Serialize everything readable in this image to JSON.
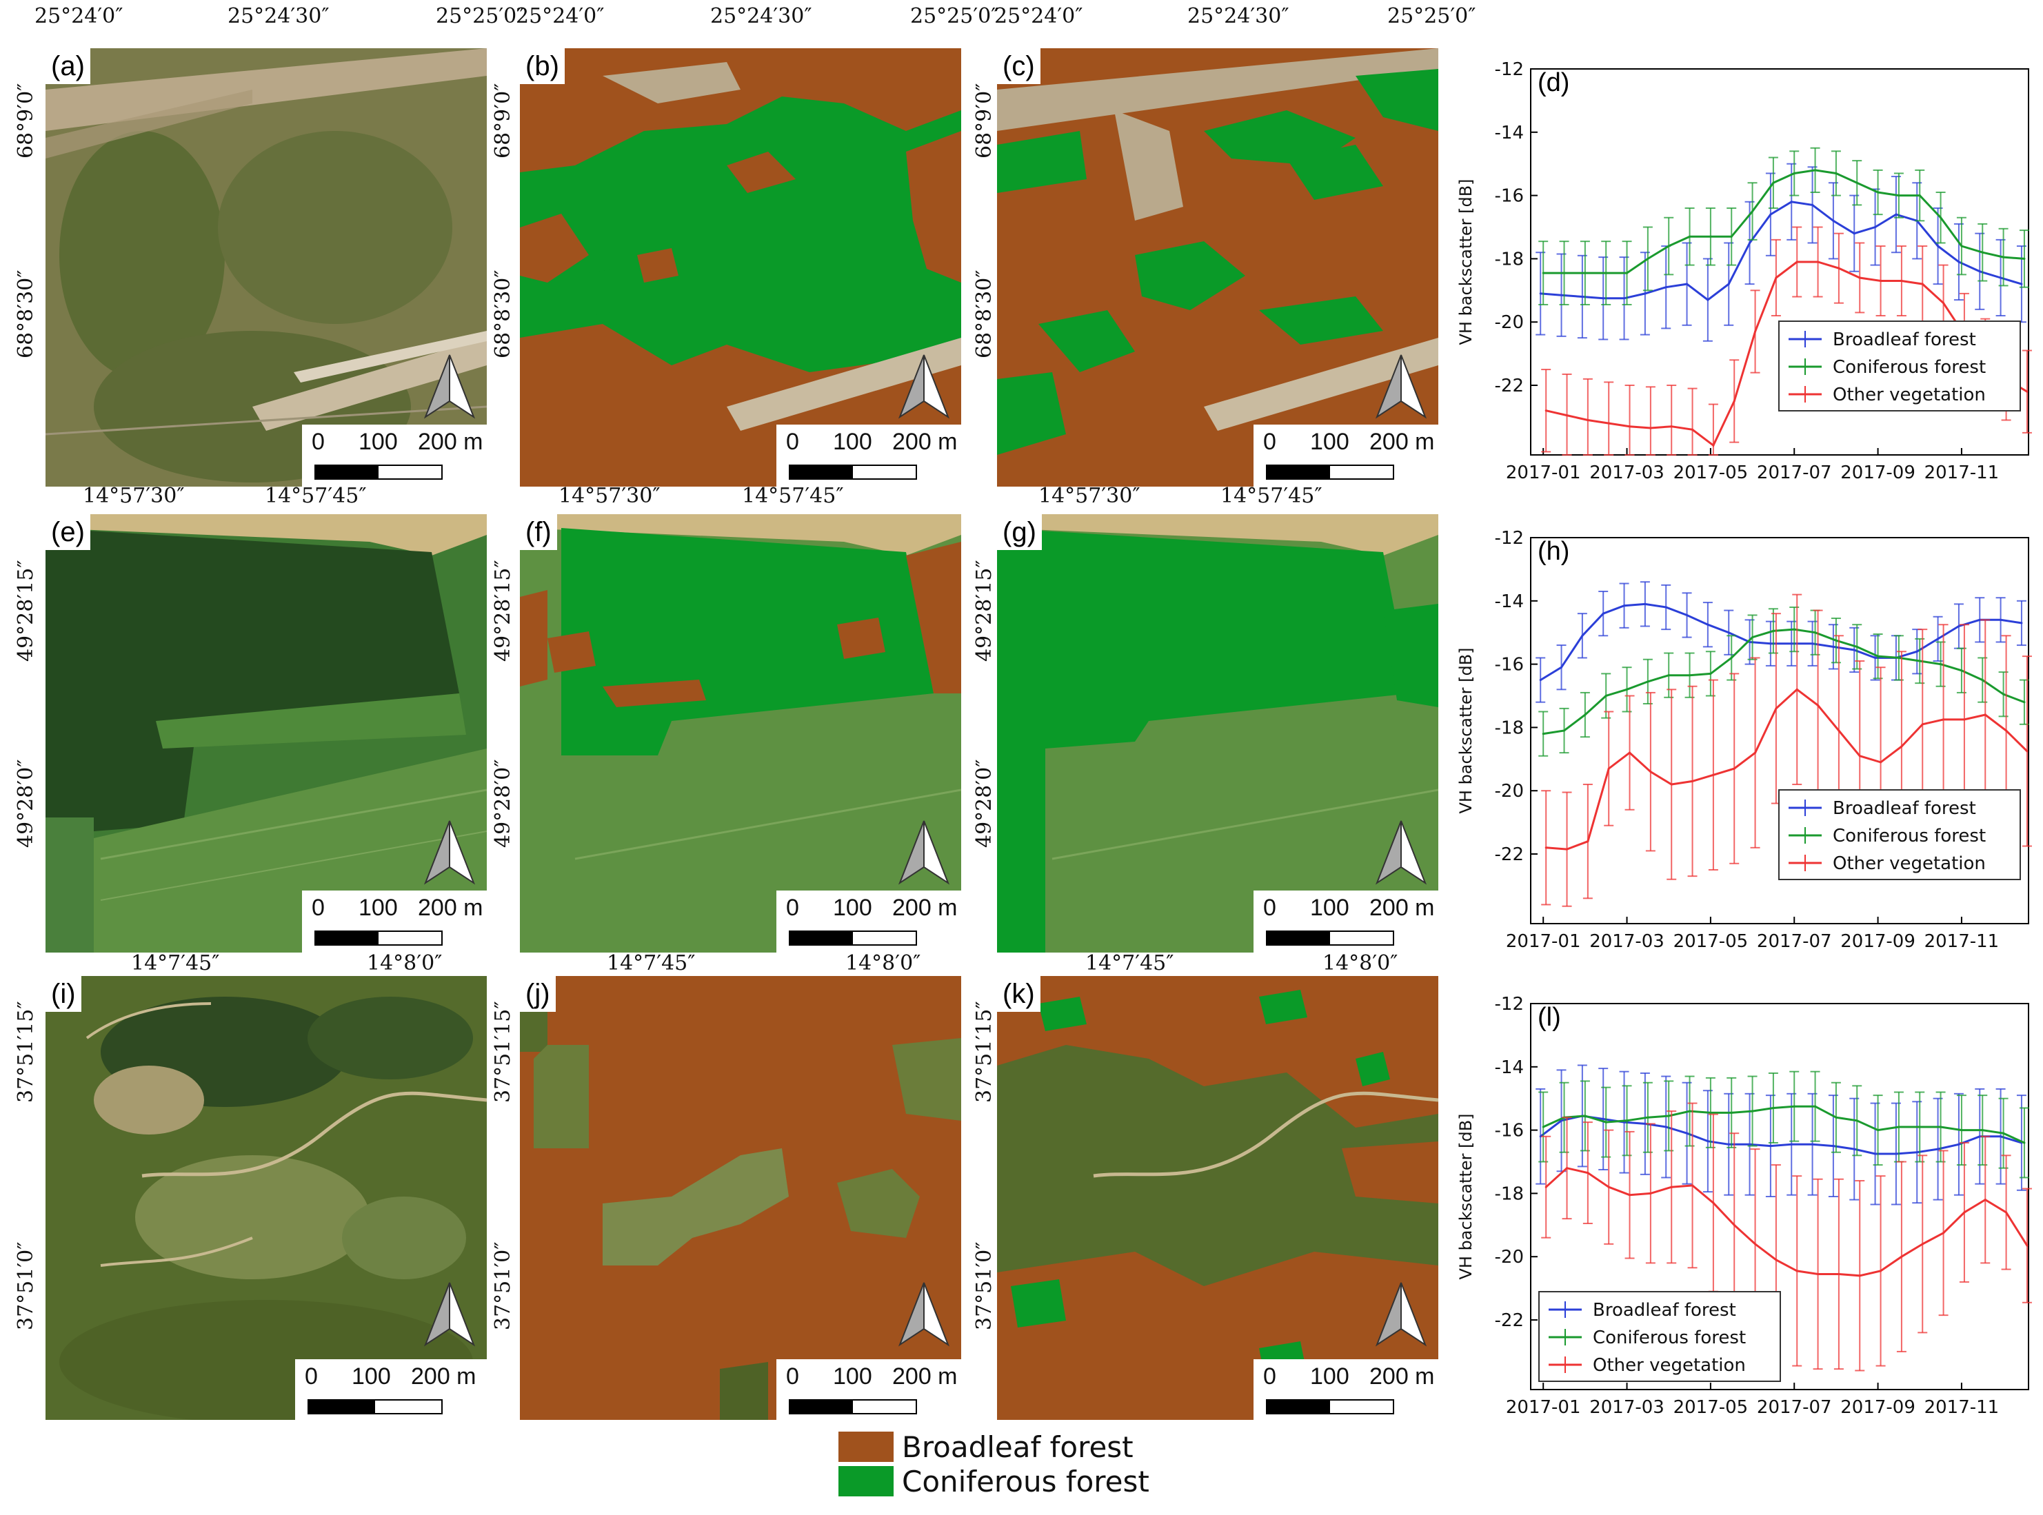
{
  "figure": {
    "legend": [
      {
        "label": "Broadleaf forest",
        "color": "#A0521D"
      },
      {
        "label": "Coniferous forest",
        "color": "#0A9A28"
      }
    ],
    "scale_labels": {
      "zero": "0",
      "mid": "100",
      "end": "200 m"
    }
  },
  "rows": [
    {
      "top_labels": [
        "25°24′0″",
        "25°24′30″",
        "25°25′0″"
      ],
      "side_labels": [
        "68°9′0″",
        "68°8′30″"
      ],
      "panels": [
        {
          "label": "(a)",
          "kind": "photo"
        },
        {
          "label": "(b)",
          "kind": "broadleaf-dominant-map"
        },
        {
          "label": "(c)",
          "kind": "mixed-map"
        }
      ],
      "chart_label": "(d)"
    },
    {
      "top_labels": [
        "14°57′30″",
        "14°57′45″"
      ],
      "side_labels": [
        "49°28′15″",
        "49°28′0″"
      ],
      "panels": [
        {
          "label": "(e)",
          "kind": "photo"
        },
        {
          "label": "(f)",
          "kind": "coniferous-map"
        },
        {
          "label": "(g)",
          "kind": "coniferous-map"
        }
      ],
      "chart_label": "(h)"
    },
    {
      "top_labels": [
        "14°7′45″",
        "14°8′0″"
      ],
      "side_labels": [
        "37°51′15″",
        "37°51′0″"
      ],
      "panels": [
        {
          "label": "(i)",
          "kind": "photo"
        },
        {
          "label": "(j)",
          "kind": "broadleaf-map"
        },
        {
          "label": "(k)",
          "kind": "broadleaf-map"
        }
      ],
      "chart_label": "(l)"
    }
  ],
  "chart_data": [
    {
      "type": "line",
      "label": "(d)",
      "ylabel": "VH backscatter [dB]",
      "xlabel": "",
      "ylim": [
        -24.2,
        -12
      ],
      "yticks": [
        -22,
        -20,
        -18,
        -16,
        -14,
        -12
      ],
      "x_tick_labels": [
        "2017-01",
        "2017-03",
        "2017-05",
        "2017-07",
        "2017-09",
        "2017-11"
      ],
      "x_tick_positions": [
        0,
        2,
        4,
        6,
        8,
        10
      ],
      "x_range": [
        -0.3,
        11.6
      ],
      "x": [
        0,
        0.5,
        1,
        1.5,
        2,
        2.5,
        3,
        3.5,
        4,
        4.5,
        5,
        5.5,
        6,
        6.5,
        7,
        7.5,
        8,
        8.5,
        9,
        9.5,
        10,
        10.5,
        11,
        11.5
      ],
      "legend_position": "bottom-right",
      "series": [
        {
          "name": "Broadleaf forest",
          "color": "#2B3FD8",
          "values": [
            -19.1,
            -19.15,
            -19.2,
            -19.25,
            -19.25,
            -19.1,
            -18.9,
            -18.8,
            -19.3,
            -18.8,
            -17.5,
            -16.6,
            -16.2,
            -16.3,
            -16.8,
            -17.2,
            -17.0,
            -16.6,
            -16.8,
            -17.6,
            -18.1,
            -18.4,
            -18.6,
            -18.8
          ],
          "errors": [
            1.3,
            1.3,
            1.3,
            1.3,
            1.3,
            1.3,
            1.3,
            1.3,
            1.3,
            1.3,
            1.3,
            1.3,
            1.2,
            1.2,
            1.2,
            1.2,
            1.2,
            1.2,
            1.2,
            1.2,
            1.2,
            1.2,
            1.2,
            1.2
          ]
        },
        {
          "name": "Coniferous forest",
          "color": "#1A9A2E",
          "values": [
            -18.45,
            -18.45,
            -18.45,
            -18.45,
            -18.45,
            -18.0,
            -17.6,
            -17.3,
            -17.3,
            -17.3,
            -16.5,
            -15.6,
            -15.3,
            -15.2,
            -15.3,
            -15.6,
            -15.9,
            -16.0,
            -16.0,
            -16.7,
            -17.6,
            -17.8,
            -17.95,
            -18.0
          ],
          "errors": [
            1.0,
            1.0,
            1.0,
            1.0,
            1.0,
            1.0,
            0.9,
            0.9,
            0.9,
            0.9,
            0.9,
            0.8,
            0.7,
            0.7,
            0.7,
            0.7,
            0.7,
            0.7,
            0.8,
            0.8,
            0.9,
            0.9,
            0.9,
            0.9
          ]
        },
        {
          "name": "Other vegetation",
          "color": "#EE3333",
          "values": [
            -22.8,
            -22.95,
            -23.1,
            -23.2,
            -23.3,
            -23.35,
            -23.3,
            -23.4,
            -23.9,
            -22.5,
            -20.3,
            -18.6,
            -18.1,
            -18.1,
            -18.3,
            -18.6,
            -18.7,
            -18.7,
            -18.8,
            -19.4,
            -20.4,
            -21.2,
            -21.8,
            -22.2
          ],
          "errors": [
            1.3,
            1.3,
            1.3,
            1.3,
            1.3,
            1.3,
            1.3,
            1.3,
            1.3,
            1.3,
            1.3,
            1.2,
            1.1,
            1.1,
            1.1,
            1.1,
            1.1,
            1.1,
            1.2,
            1.2,
            1.3,
            1.3,
            1.3,
            1.3
          ]
        }
      ]
    },
    {
      "type": "line",
      "label": "(h)",
      "ylabel": "VH backscatter [dB]",
      "xlabel": "",
      "ylim": [
        -24.2,
        -12
      ],
      "yticks": [
        -22,
        -20,
        -18,
        -16,
        -14,
        -12
      ],
      "x_tick_labels": [
        "2017-01",
        "2017-03",
        "2017-05",
        "2017-07",
        "2017-09",
        "2017-11"
      ],
      "x_tick_positions": [
        0,
        2,
        4,
        6,
        8,
        10
      ],
      "x_range": [
        -0.3,
        11.6
      ],
      "x": [
        0,
        0.5,
        1,
        1.5,
        2,
        2.5,
        3,
        3.5,
        4,
        4.5,
        5,
        5.5,
        6,
        6.5,
        7,
        7.5,
        8,
        8.5,
        9,
        9.5,
        10,
        10.5,
        11,
        11.5
      ],
      "legend_position": "bottom-right",
      "series": [
        {
          "name": "Broadleaf forest",
          "color": "#2B3FD8",
          "values": [
            -16.5,
            -16.1,
            -15.1,
            -14.4,
            -14.15,
            -14.1,
            -14.2,
            -14.45,
            -14.75,
            -15.0,
            -15.3,
            -15.35,
            -15.35,
            -15.35,
            -15.45,
            -15.55,
            -15.8,
            -15.8,
            -15.6,
            -15.2,
            -14.8,
            -14.6,
            -14.6,
            -14.7
          ],
          "errors": [
            0.7,
            0.7,
            0.7,
            0.7,
            0.7,
            0.7,
            0.7,
            0.7,
            0.7,
            0.7,
            0.7,
            0.7,
            0.7,
            0.7,
            0.7,
            0.7,
            0.7,
            0.7,
            0.7,
            0.7,
            0.7,
            0.7,
            0.7,
            0.7
          ]
        },
        {
          "name": "Coniferous forest",
          "color": "#1A9A2E",
          "values": [
            -18.2,
            -18.1,
            -17.6,
            -17.0,
            -16.8,
            -16.55,
            -16.35,
            -16.35,
            -16.3,
            -15.8,
            -15.15,
            -14.95,
            -14.9,
            -15.0,
            -15.25,
            -15.45,
            -15.75,
            -15.8,
            -15.9,
            -16.0,
            -16.2,
            -16.5,
            -16.95,
            -17.2
          ],
          "errors": [
            0.7,
            0.7,
            0.7,
            0.7,
            0.7,
            0.7,
            0.7,
            0.7,
            0.7,
            0.7,
            0.7,
            0.7,
            0.7,
            0.7,
            0.7,
            0.7,
            0.7,
            0.7,
            0.7,
            0.7,
            0.7,
            0.7,
            0.7,
            0.7
          ]
        },
        {
          "name": "Other vegetation",
          "color": "#EE3333",
          "values": [
            -21.8,
            -21.85,
            -21.6,
            -19.3,
            -18.8,
            -19.4,
            -19.8,
            -19.7,
            -19.5,
            -19.3,
            -18.8,
            -17.4,
            -16.8,
            -17.3,
            -18.1,
            -18.9,
            -19.1,
            -18.6,
            -17.9,
            -17.75,
            -17.75,
            -17.6,
            -18.1,
            -18.75
          ],
          "errors": [
            1.8,
            1.8,
            1.8,
            1.8,
            1.8,
            2.5,
            3.0,
            3.0,
            3.0,
            3.0,
            3.0,
            3.0,
            3.0,
            3.0,
            3.0,
            3.0,
            3.0,
            3.0,
            3.0,
            3.0,
            3.0,
            3.0,
            3.0,
            3.0
          ]
        }
      ]
    },
    {
      "type": "line",
      "label": "(l)",
      "ylabel": "VH backscatter [dB]",
      "xlabel": "",
      "ylim": [
        -24.2,
        -12
      ],
      "yticks": [
        -22,
        -20,
        -18,
        -16,
        -14,
        -12
      ],
      "x_tick_labels": [
        "2017-01",
        "2017-03",
        "2017-05",
        "2017-07",
        "2017-09",
        "2017-11"
      ],
      "x_tick_positions": [
        0,
        2,
        4,
        6,
        8,
        10
      ],
      "x_range": [
        -0.3,
        11.6
      ],
      "x": [
        0,
        0.5,
        1,
        1.5,
        2,
        2.5,
        3,
        3.5,
        4,
        4.5,
        5,
        5.5,
        6,
        6.5,
        7,
        7.5,
        8,
        8.5,
        9,
        9.5,
        10,
        10.5,
        11,
        11.5
      ],
      "legend_position": "bottom-left",
      "series": [
        {
          "name": "Broadleaf forest",
          "color": "#2B3FD8",
          "values": [
            -16.2,
            -15.7,
            -15.55,
            -15.65,
            -15.75,
            -15.8,
            -15.9,
            -16.1,
            -16.35,
            -16.45,
            -16.45,
            -16.5,
            -16.45,
            -16.45,
            -16.5,
            -16.6,
            -16.75,
            -16.75,
            -16.7,
            -16.6,
            -16.45,
            -16.2,
            -16.2,
            -16.4
          ],
          "errors": [
            1.5,
            1.6,
            1.6,
            1.6,
            1.6,
            1.6,
            1.6,
            1.6,
            1.6,
            1.6,
            1.6,
            1.6,
            1.6,
            1.6,
            1.6,
            1.6,
            1.6,
            1.6,
            1.6,
            1.6,
            1.6,
            1.5,
            1.5,
            1.5
          ]
        },
        {
          "name": "Coniferous forest",
          "color": "#1A9A2E",
          "values": [
            -15.9,
            -15.6,
            -15.55,
            -15.75,
            -15.7,
            -15.6,
            -15.55,
            -15.4,
            -15.45,
            -15.45,
            -15.4,
            -15.3,
            -15.25,
            -15.25,
            -15.6,
            -15.7,
            -16.0,
            -15.9,
            -15.9,
            -15.9,
            -16.0,
            -16.0,
            -16.1,
            -16.4
          ],
          "errors": [
            1.1,
            1.1,
            1.1,
            1.1,
            1.1,
            1.1,
            1.1,
            1.1,
            1.1,
            1.1,
            1.1,
            1.1,
            1.1,
            1.1,
            1.1,
            1.1,
            1.1,
            1.1,
            1.1,
            1.1,
            1.1,
            1.1,
            1.1,
            1.1
          ]
        },
        {
          "name": "Other vegetation",
          "color": "#EE3333",
          "values": [
            -17.8,
            -17.2,
            -17.35,
            -17.8,
            -18.05,
            -18.0,
            -17.8,
            -17.75,
            -18.3,
            -19.0,
            -19.6,
            -20.1,
            -20.45,
            -20.55,
            -20.55,
            -20.6,
            -20.45,
            -20.0,
            -19.6,
            -19.25,
            -18.6,
            -18.2,
            -18.6,
            -19.65
          ],
          "errors": [
            1.6,
            1.6,
            1.6,
            1.8,
            2.0,
            2.2,
            2.4,
            2.6,
            2.8,
            2.9,
            3.0,
            3.0,
            3.0,
            3.0,
            3.0,
            3.0,
            3.0,
            3.0,
            2.8,
            2.6,
            2.2,
            2.0,
            1.8,
            1.8
          ]
        }
      ]
    }
  ]
}
